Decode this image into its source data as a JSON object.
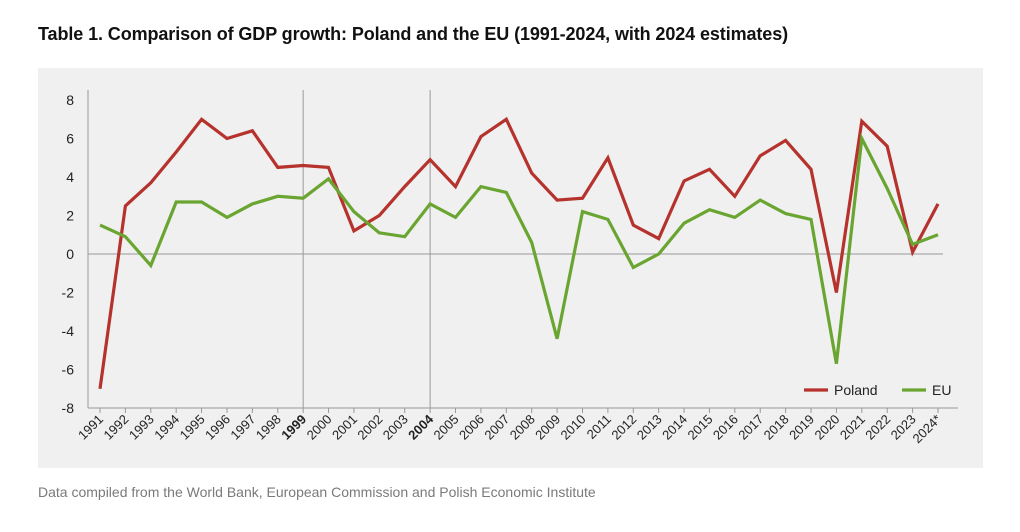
{
  "title": "Table 1. Comparison of GDP growth: Poland and the EU (1991-2024, with 2024 estimates)",
  "source": "Data compiled from the World Bank, European Commission and Polish Economic Institute",
  "chart_data": {
    "type": "line",
    "x": [
      "1991",
      "1992",
      "1993",
      "1994",
      "1995",
      "1996",
      "1997",
      "1998",
      "1999",
      "2000",
      "2001",
      "2002",
      "2003",
      "2004",
      "2005",
      "2006",
      "2007",
      "2008",
      "2009",
      "2010",
      "2011",
      "2012",
      "2013",
      "2014",
      "2015",
      "2016",
      "2017",
      "2018",
      "2019",
      "2020",
      "2021",
      "2022",
      "2023",
      "2024*"
    ],
    "highlighted_x": [
      "1999",
      "2004"
    ],
    "series": [
      {
        "name": "Poland",
        "color": "#b5322d",
        "values": [
          -7.0,
          2.5,
          3.7,
          5.3,
          7.0,
          6.0,
          6.4,
          4.5,
          4.6,
          4.5,
          1.2,
          2.0,
          3.5,
          4.9,
          3.5,
          6.1,
          7.0,
          4.2,
          2.8,
          2.9,
          5.0,
          1.5,
          0.8,
          3.8,
          4.4,
          3.0,
          5.1,
          5.9,
          4.4,
          -2.0,
          6.9,
          5.6,
          0.1,
          2.6
        ]
      },
      {
        "name": "EU",
        "color": "#6aa531",
        "values": [
          1.5,
          0.9,
          -0.6,
          2.7,
          2.7,
          1.9,
          2.6,
          3.0,
          2.9,
          3.9,
          2.2,
          1.1,
          0.9,
          2.6,
          1.9,
          3.5,
          3.2,
          0.6,
          -4.4,
          2.2,
          1.8,
          -0.7,
          0.0,
          1.6,
          2.3,
          1.9,
          2.8,
          2.1,
          1.8,
          -5.7,
          6.0,
          3.4,
          0.5,
          1.0
        ]
      }
    ],
    "yticks": [
      "8",
      "6",
      "4",
      "2",
      "0",
      "-2",
      "-4",
      "-6",
      "-8"
    ],
    "ylim": [
      -8,
      8
    ],
    "grid": false,
    "legend_position": "bottom-right"
  }
}
